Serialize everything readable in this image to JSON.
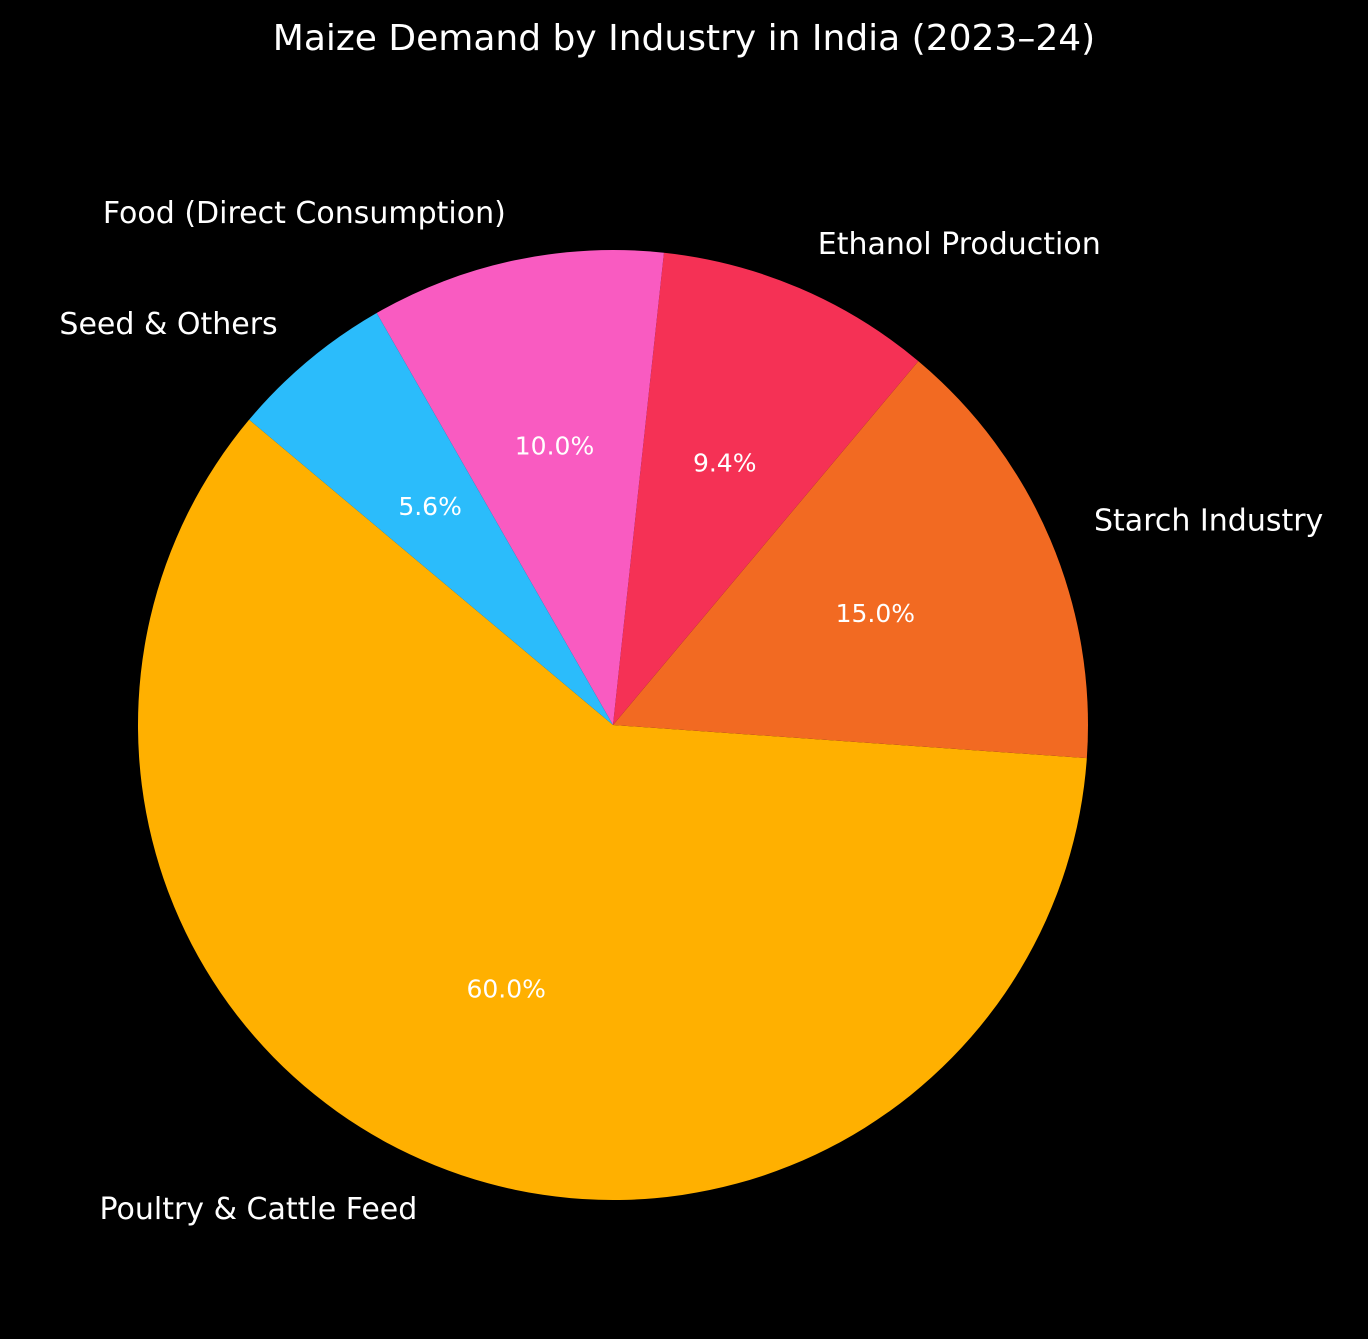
{
  "chart_data": {
    "type": "pie",
    "title": "Maize Demand by Industry in India (2023–24)",
    "slices": [
      {
        "label": "Poultry & Cattle Feed",
        "value": 60.0,
        "pct_text": "60.0%",
        "color": "#FFB000"
      },
      {
        "label": "Starch Industry",
        "value": 15.0,
        "pct_text": "15.0%",
        "color": "#F26A22"
      },
      {
        "label": "Ethanol Production",
        "value": 9.4,
        "pct_text": "9.4%",
        "color": "#F53155"
      },
      {
        "label": "Food (Direct Consumption)",
        "value": 10.0,
        "pct_text": "10.0%",
        "color": "#F95BC1"
      },
      {
        "label": "Seed & Others",
        "value": 5.6,
        "pct_text": "5.6%",
        "color": "#2BBCFB"
      }
    ],
    "start_angle_deg": 140,
    "direction": "counterclockwise",
    "background": "#000000",
    "text_color": "#ffffff"
  }
}
